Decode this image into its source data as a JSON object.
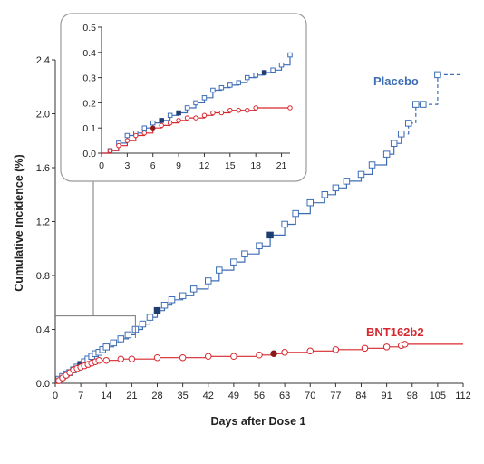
{
  "chart_data": {
    "type": "line",
    "title": "",
    "xlabel": "Days after Dose 1",
    "ylabel": "Cumulative Incidence (%)",
    "xlim": [
      0,
      112
    ],
    "ylim": [
      0,
      2.4
    ],
    "xticks": [
      0,
      7,
      14,
      21,
      28,
      35,
      42,
      49,
      56,
      63,
      70,
      77,
      84,
      91,
      98,
      105,
      112
    ],
    "yticks": [
      0.0,
      0.4,
      0.8,
      1.2,
      1.6,
      2.0,
      2.4
    ],
    "ytick_labels": [
      "0.0",
      "0.4",
      "0.8",
      "1.2",
      "1.6",
      "2.0",
      "2.4"
    ],
    "step": true,
    "colors": {
      "placebo": "#3d6db5",
      "vaccine": "#d8282f",
      "placebo_filled": "#1e3e72",
      "vaccine_filled": "#8a1a1a"
    },
    "series": [
      {
        "name": "Placebo",
        "color": "#3d6db5",
        "marker": "square",
        "x": [
          0,
          1,
          2,
          3,
          4,
          5,
          6,
          7,
          8,
          9,
          10,
          11,
          12,
          13,
          14,
          16,
          18,
          20,
          22,
          24,
          26,
          28,
          30,
          32,
          35,
          38,
          42,
          45,
          49,
          52,
          56,
          59,
          63,
          66,
          70,
          74,
          77,
          80,
          84,
          87,
          91,
          93,
          95,
          97,
          99,
          101,
          105
        ],
        "y": [
          0.0,
          0.03,
          0.05,
          0.07,
          0.08,
          0.1,
          0.12,
          0.14,
          0.16,
          0.18,
          0.2,
          0.22,
          0.23,
          0.25,
          0.27,
          0.3,
          0.33,
          0.36,
          0.4,
          0.44,
          0.49,
          0.54,
          0.58,
          0.62,
          0.65,
          0.7,
          0.76,
          0.84,
          0.9,
          0.96,
          1.02,
          1.1,
          1.18,
          1.26,
          1.34,
          1.4,
          1.45,
          1.5,
          1.55,
          1.62,
          1.7,
          1.78,
          1.85,
          1.93,
          2.07,
          2.07,
          2.29
        ],
        "filled_x": [
          7,
          21,
          28,
          59,
          65
        ],
        "dashed_from_x": 95
      },
      {
        "name": "BNT162b2",
        "color": "#d8282f",
        "marker": "circle",
        "x": [
          0,
          1,
          2,
          3,
          4,
          5,
          6,
          7,
          8,
          9,
          10,
          11,
          12,
          14,
          18,
          21,
          28,
          35,
          42,
          49,
          56,
          60,
          63,
          70,
          77,
          85,
          91,
          95,
          96,
          112
        ],
        "y": [
          0.0,
          0.02,
          0.04,
          0.06,
          0.08,
          0.1,
          0.11,
          0.12,
          0.13,
          0.14,
          0.15,
          0.16,
          0.17,
          0.17,
          0.18,
          0.18,
          0.19,
          0.19,
          0.2,
          0.2,
          0.21,
          0.22,
          0.23,
          0.24,
          0.25,
          0.26,
          0.27,
          0.28,
          0.29,
          0.29
        ],
        "filled_x": [
          60
        ]
      }
    ],
    "annotations": [
      {
        "text": "Placebo",
        "series": "Placebo"
      },
      {
        "text": "BNT162b2",
        "series": "BNT162b2"
      }
    ],
    "inset": {
      "xlim": [
        0,
        22
      ],
      "ylim": [
        0,
        0.5
      ],
      "xticks": [
        0,
        3,
        6,
        9,
        12,
        15,
        18,
        21
      ],
      "yticks": [
        0.0,
        0.1,
        0.2,
        0.3,
        0.4,
        0.5
      ],
      "ytick_labels": [
        "0.0",
        "0.1",
        "0.2",
        "0.3",
        "0.4",
        "0.5"
      ],
      "series": [
        {
          "name": "Placebo",
          "x": [
            0,
            1,
            2,
            3,
            4,
            5,
            6,
            7,
            8,
            9,
            10,
            11,
            12,
            13,
            14,
            15,
            16,
            17,
            18,
            19,
            20,
            21,
            22
          ],
          "y": [
            0.0,
            0.01,
            0.04,
            0.07,
            0.08,
            0.1,
            0.12,
            0.13,
            0.15,
            0.16,
            0.18,
            0.2,
            0.22,
            0.25,
            0.26,
            0.27,
            0.28,
            0.3,
            0.31,
            0.32,
            0.33,
            0.35,
            0.39
          ],
          "filled_x": [
            7,
            9,
            19
          ]
        },
        {
          "name": "BNT162b2",
          "x": [
            0,
            1,
            2,
            3,
            4,
            5,
            6,
            7,
            8,
            9,
            10,
            11,
            12,
            13,
            14,
            15,
            16,
            17,
            18,
            22
          ],
          "y": [
            0.0,
            0.01,
            0.03,
            0.05,
            0.07,
            0.08,
            0.1,
            0.11,
            0.12,
            0.13,
            0.14,
            0.14,
            0.15,
            0.16,
            0.16,
            0.17,
            0.17,
            0.17,
            0.18,
            0.18
          ],
          "filled_x": [
            6
          ]
        }
      ]
    }
  }
}
